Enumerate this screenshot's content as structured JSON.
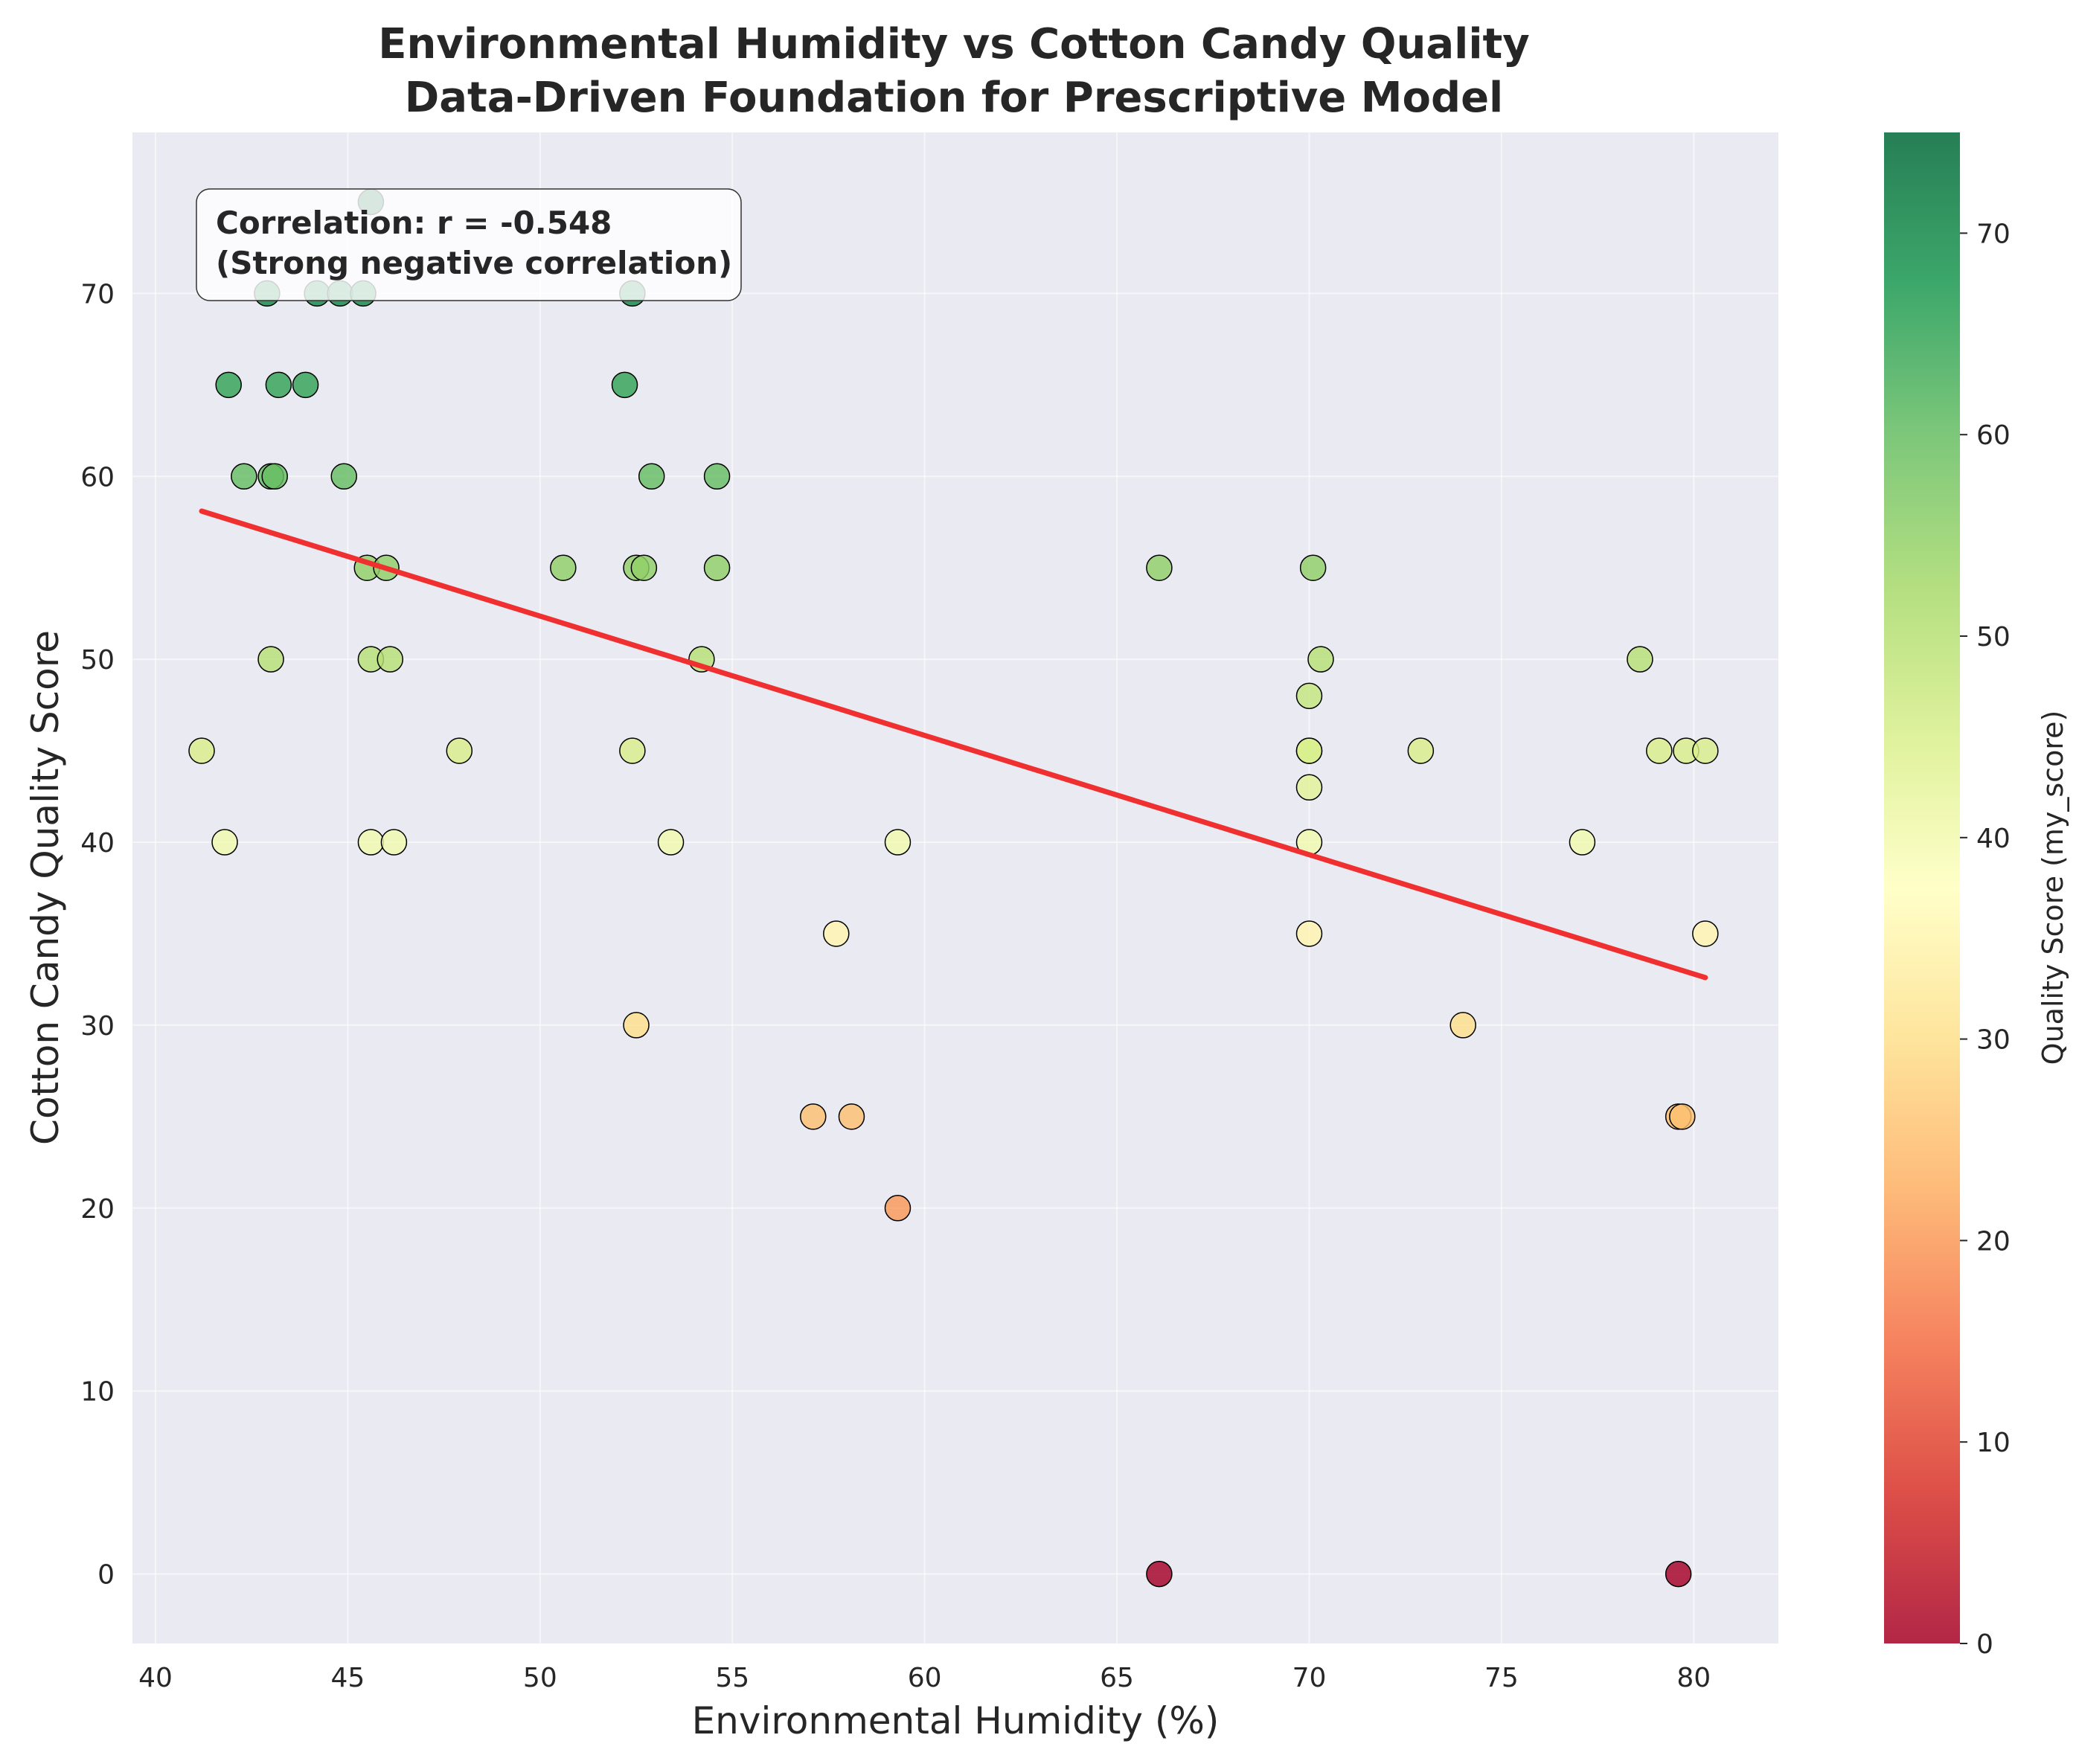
{
  "chart_data": {
    "type": "scatter",
    "title": "Environmental Humidity vs Cotton Candy Quality",
    "subtitle": "Data-Driven Foundation for Prescriptive Model",
    "xlabel": "Environmental Humidity (%)",
    "ylabel": "Cotton Candy Quality Score",
    "xlim": [
      39.4,
      82.2
    ],
    "ylim": [
      -3.8,
      78.8
    ],
    "xticks": [
      40,
      45,
      50,
      55,
      60,
      65,
      70,
      75,
      80
    ],
    "yticks": [
      0,
      10,
      20,
      30,
      40,
      50,
      60,
      70
    ],
    "grid": true,
    "points": [
      {
        "x": 41.2,
        "y": 45
      },
      {
        "x": 41.8,
        "y": 40
      },
      {
        "x": 41.9,
        "y": 65
      },
      {
        "x": 42.3,
        "y": 60
      },
      {
        "x": 42.9,
        "y": 70
      },
      {
        "x": 43.0,
        "y": 60
      },
      {
        "x": 43.0,
        "y": 50
      },
      {
        "x": 43.1,
        "y": 60
      },
      {
        "x": 43.2,
        "y": 65
      },
      {
        "x": 43.9,
        "y": 65
      },
      {
        "x": 44.2,
        "y": 70
      },
      {
        "x": 44.8,
        "y": 70
      },
      {
        "x": 44.9,
        "y": 60
      },
      {
        "x": 45.4,
        "y": 70
      },
      {
        "x": 45.5,
        "y": 55
      },
      {
        "x": 45.6,
        "y": 50
      },
      {
        "x": 45.6,
        "y": 40
      },
      {
        "x": 45.6,
        "y": 75
      },
      {
        "x": 46.0,
        "y": 55
      },
      {
        "x": 46.1,
        "y": 50
      },
      {
        "x": 46.2,
        "y": 40
      },
      {
        "x": 47.9,
        "y": 45
      },
      {
        "x": 50.6,
        "y": 55
      },
      {
        "x": 52.2,
        "y": 65
      },
      {
        "x": 52.4,
        "y": 70
      },
      {
        "x": 52.4,
        "y": 45
      },
      {
        "x": 52.5,
        "y": 55
      },
      {
        "x": 52.5,
        "y": 30
      },
      {
        "x": 52.7,
        "y": 55
      },
      {
        "x": 52.9,
        "y": 60
      },
      {
        "x": 53.4,
        "y": 40
      },
      {
        "x": 54.2,
        "y": 50
      },
      {
        "x": 54.6,
        "y": 60
      },
      {
        "x": 54.6,
        "y": 55
      },
      {
        "x": 57.1,
        "y": 25
      },
      {
        "x": 57.7,
        "y": 35
      },
      {
        "x": 58.1,
        "y": 25
      },
      {
        "x": 59.3,
        "y": 40
      },
      {
        "x": 59.3,
        "y": 20
      },
      {
        "x": 66.1,
        "y": 55
      },
      {
        "x": 66.1,
        "y": 0
      },
      {
        "x": 70.0,
        "y": 48
      },
      {
        "x": 70.0,
        "y": 45
      },
      {
        "x": 70.0,
        "y": 45
      },
      {
        "x": 70.0,
        "y": 43
      },
      {
        "x": 70.0,
        "y": 40
      },
      {
        "x": 70.0,
        "y": 35
      },
      {
        "x": 70.1,
        "y": 55
      },
      {
        "x": 70.3,
        "y": 50
      },
      {
        "x": 72.9,
        "y": 45
      },
      {
        "x": 74.0,
        "y": 30
      },
      {
        "x": 77.1,
        "y": 40
      },
      {
        "x": 78.6,
        "y": 50
      },
      {
        "x": 79.1,
        "y": 45
      },
      {
        "x": 79.6,
        "y": 25
      },
      {
        "x": 79.6,
        "y": 0
      },
      {
        "x": 79.7,
        "y": 25
      },
      {
        "x": 79.8,
        "y": 45
      },
      {
        "x": 80.3,
        "y": 45
      },
      {
        "x": 80.3,
        "y": 35
      }
    ],
    "trend_line": {
      "x": [
        41.2,
        80.3
      ],
      "y": [
        58.1,
        32.6
      ],
      "color": "#f03030"
    },
    "annotation": {
      "line1": "Correlation: r = -0.548",
      "line2": "(Strong negative correlation)"
    },
    "colorbar": {
      "label": "Quality Score (my_score)",
      "colormap": "RdYlGn",
      "range": [
        0,
        75
      ],
      "ticks": [
        0,
        10,
        20,
        30,
        40,
        50,
        60,
        70
      ]
    },
    "colors": {
      "plot_background": "#eaeaf2",
      "grid": "#ffffff",
      "text": "#262626"
    }
  }
}
